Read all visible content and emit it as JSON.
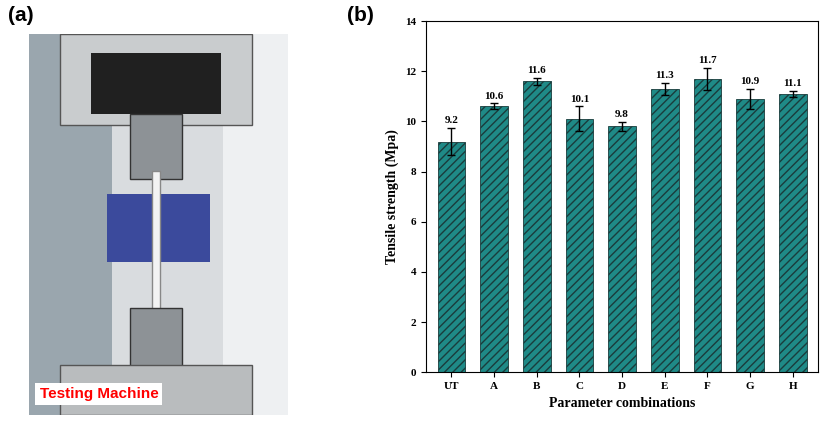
{
  "panel_labels": [
    "(a)",
    "(b)"
  ],
  "photo": {
    "caption": "Testing Machine"
  },
  "chart_data": {
    "type": "bar",
    "x_label": "Parameter combinations",
    "y_label": "Tensile strength (Mpa)",
    "categories": [
      "UT",
      "A",
      "B",
      "C",
      "D",
      "E",
      "F",
      "G",
      "H"
    ],
    "values": [
      9.2,
      10.6,
      11.6,
      10.1,
      9.8,
      11.3,
      11.7,
      10.9,
      11.1
    ],
    "errors": [
      0.55,
      0.12,
      0.15,
      0.5,
      0.18,
      0.25,
      0.45,
      0.4,
      0.12
    ],
    "color": "#1f8a87",
    "ylim": [
      0,
      14
    ],
    "yticks": [
      0,
      2,
      4,
      6,
      8,
      10,
      12,
      14
    ],
    "data_labels": true,
    "grid": false
  }
}
